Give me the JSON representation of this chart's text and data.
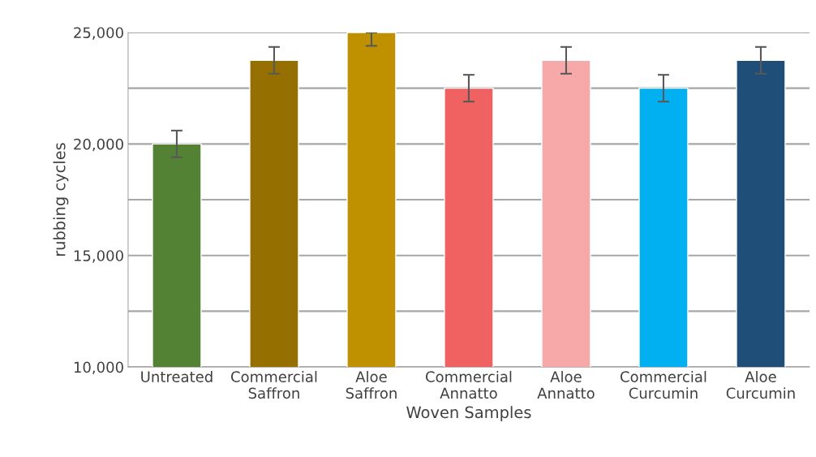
{
  "chart_data": {
    "type": "bar",
    "xlabel": "Woven Samples",
    "ylabel": "rubbing cycles",
    "categories": [
      "Untreated",
      "Commercial\nSaffron",
      "Aloe\nSaffron",
      "Commercial\nAnnatto",
      "Aloe\nAnnatto",
      "Commercial\nCurcumin",
      "Aloe\nCurcumin"
    ],
    "values": [
      20000,
      23750,
      25000,
      22500,
      23750,
      22500,
      23750
    ],
    "colors": [
      "#548235",
      "#957000",
      "#bf9000",
      "#f06262",
      "#f7a9a9",
      "#00b0f0",
      "#1f4e79"
    ],
    "errors": [
      600,
      600,
      [
        24400,
        25000
      ],
      600,
      600,
      600,
      600
    ],
    "ylim": [
      10000,
      25000
    ],
    "yticks": [
      {
        "value": 10000,
        "label": "10,000"
      },
      {
        "value": 12500,
        "label": null
      },
      {
        "value": 15000,
        "label": "15,000"
      },
      {
        "value": 17500,
        "label": null
      },
      {
        "value": 20000,
        "label": "20,000"
      },
      {
        "value": 22500,
        "label": null
      },
      {
        "value": 25000,
        "label": "25,000"
      }
    ],
    "grid": "y"
  }
}
